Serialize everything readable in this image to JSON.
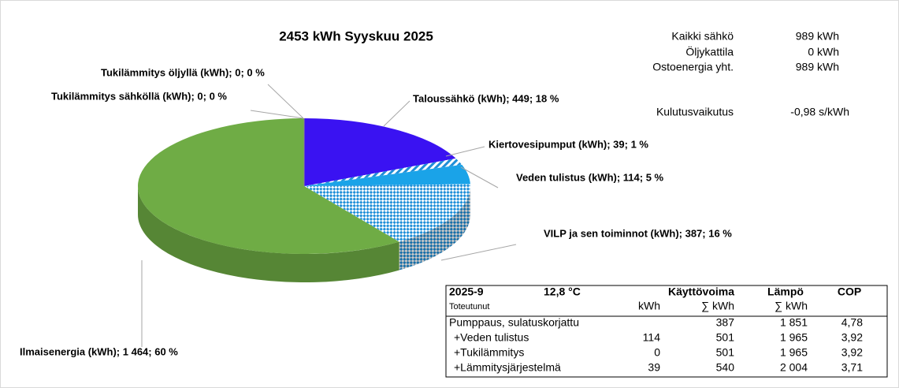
{
  "chart_data": {
    "type": "pie",
    "title": "2453  kWh Syyskuu 2025",
    "categories": [
      "Taloussähkö (kWh)",
      "Kiertovesipumput (kWh)",
      "Veden tulistus (kWh)",
      "VILP ja sen toiminnot (kWh)",
      "Ilmaisenergia (kWh)",
      "Tukilämmitys sähköllä (kWh)",
      "Tukilämmitys öljyllä (kWh)"
    ],
    "values": [
      449,
      39,
      114,
      387,
      1464,
      0,
      0
    ],
    "value_labels": [
      "Taloussähkö (kWh); 449; 18 %",
      "Kiertovesipumput (kWh); 39; 1 %",
      "Veden tulistus (kWh); 114; 5 %",
      "VILP ja sen toiminnot (kWh); 387; 16 %",
      "Ilmaisenergia (kWh); 1 464; 60 %",
      "Tukilämmitys sähköllä (kWh); 0; 0 %",
      "Tukilämmitys öljyllä (kWh); 0; 0 %"
    ],
    "colors": [
      "#3a12f2",
      "#1f8fd8",
      "#1aa3e8",
      "#1f8fd8",
      "#6fac45",
      "#c0504d",
      "#8064a2"
    ],
    "patterns": [
      null,
      "diagonal",
      null,
      "checker",
      null,
      null,
      null
    ]
  },
  "summary": [
    {
      "label": "Kaikki sähkö",
      "value": "989 kWh"
    },
    {
      "label": "Öljykattila",
      "value": "0 kWh"
    },
    {
      "label": "Ostoenergia yht.",
      "value": "989 kWh"
    },
    {
      "label": "Kulutusvaikutus",
      "value": "-0,98 s/kWh"
    }
  ],
  "table": {
    "header": [
      "2025-9",
      "12,8  °C",
      "Käyttövoima",
      "Lämpö",
      "COP"
    ],
    "subheader": [
      "Toteutunut",
      "kWh",
      "∑ kWh",
      "∑ kWh"
    ],
    "rows": [
      [
        "Pumppaus, sulatuskorjattu",
        null,
        "387",
        "1 851",
        "4,78"
      ],
      [
        "+Veden tulistus",
        "114",
        "501",
        "1 965",
        "3,92"
      ],
      [
        "+Tukilämmitys",
        "0",
        "501",
        "1 965",
        "3,92"
      ],
      [
        "+Lämmitysjärjestelmä",
        "39",
        "540",
        "2 004",
        "3,71"
      ]
    ]
  }
}
